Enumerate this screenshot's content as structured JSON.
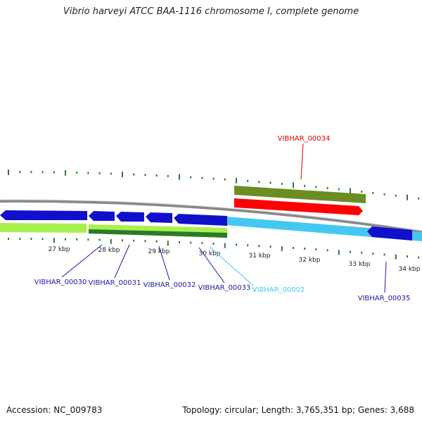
{
  "title": "Vibrio harveyi ATCC BAA-1116 chromosome I, complete genome",
  "footer": {
    "accession": "Accession: NC_009783",
    "topology": "Topology: circular; Length: 3,765,351 bp; Genes: 3,688"
  },
  "colors": {
    "forward_gene": "#1010cc",
    "forward_gene_light": "#44c8f0",
    "reverse_gene": "#a8f050",
    "reverse_gene_dark": "#2a7a2a",
    "highlight_gene": "#ff0000",
    "highlight_gene_companion": "#6b8e23",
    "tick": "#2a7a2a",
    "backbone": "#888888"
  },
  "scale_labels": [
    "27 kbp",
    "28 kbp",
    "29 kbp",
    "30 kbp",
    "31 kbp",
    "32 kbp",
    "33 kbp",
    "34 kbp"
  ],
  "gene_labels": [
    {
      "id": "VIBHAR_00030",
      "color": "#1a1aa0"
    },
    {
      "id": "VIBHAR_00031",
      "color": "#1a1aa0"
    },
    {
      "id": "VIBHAR_00032",
      "color": "#1a1aa0"
    },
    {
      "id": "VIBHAR_00033",
      "color": "#1a1aa0"
    },
    {
      "id": "VIBHAR_00002",
      "color": "#44c8f0"
    },
    {
      "id": "VIBHAR_00035",
      "color": "#1a1aa0"
    },
    {
      "id": "VIBHAR_00034",
      "color": "#dd0000"
    }
  ]
}
